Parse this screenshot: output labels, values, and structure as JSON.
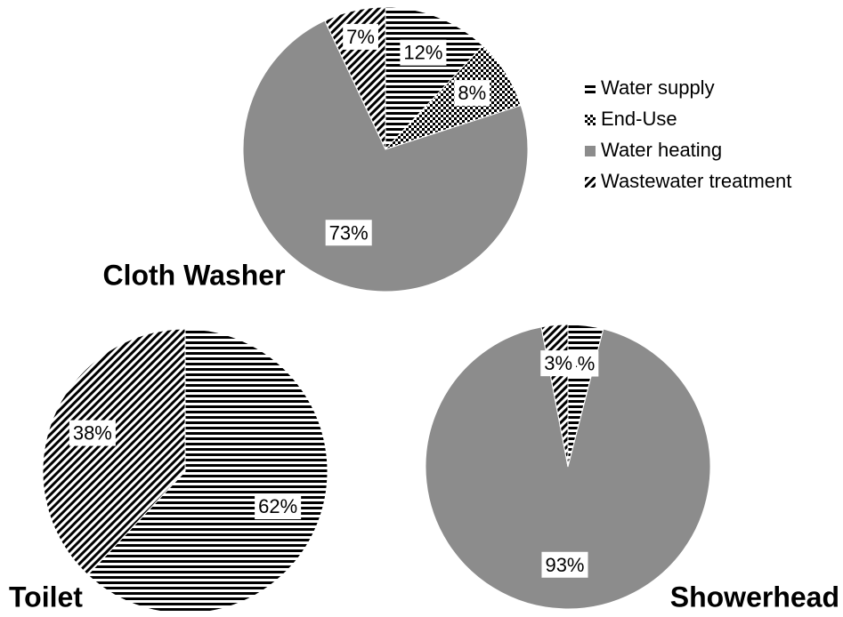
{
  "chart_data": [
    {
      "type": "pie",
      "title": "Cloth Washer",
      "categories": [
        "Water supply",
        "End-Use",
        "Water heating",
        "Wastewater treatment"
      ],
      "values": [
        12,
        8,
        73,
        7
      ],
      "value_labels": [
        "12%",
        "8%",
        "73%",
        "7%"
      ],
      "colors": [
        "#000000",
        "#000000",
        "#8c8c8c",
        "#000000"
      ],
      "hatches": [
        "horizontal",
        "cross",
        "none",
        "diagonal"
      ],
      "legend": "right"
    },
    {
      "type": "pie",
      "title": "Toilet",
      "values": [
        62,
        0,
        0,
        38
      ],
      "value_labels": [
        "62%",
        null,
        null,
        "38%"
      ]
    },
    {
      "type": "pie",
      "title": "Showerhead",
      "values": [
        4,
        0,
        93,
        3
      ],
      "value_labels": [
        "4%",
        null,
        "93%",
        "3%"
      ]
    }
  ]
}
